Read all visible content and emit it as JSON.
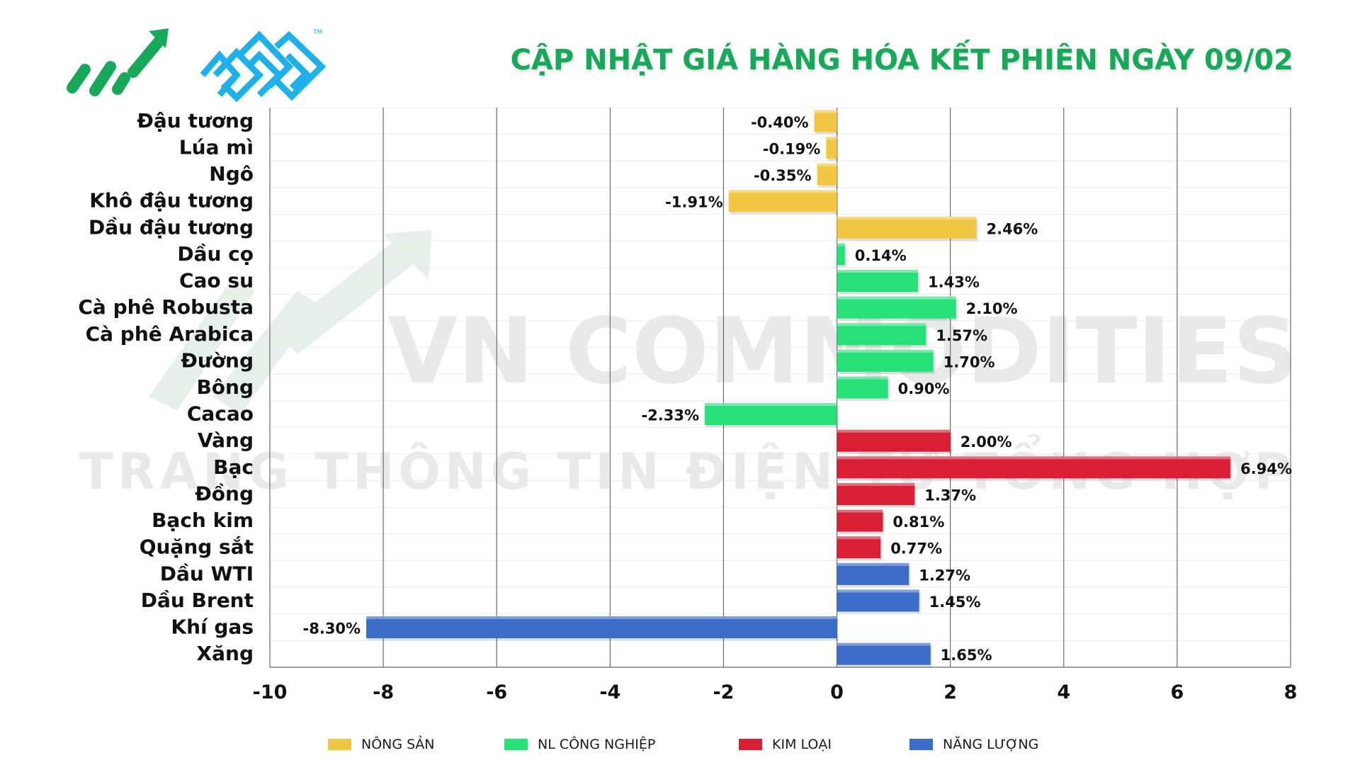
{
  "header": {
    "title": "CẬP NHẬT GIÁ HÀNG HÓA KẾT PHIÊN NGÀY 09/02"
  },
  "watermark": {
    "line1": "VN COMMODITIES",
    "line2": "TRANG THÔNG TIN ĐIỆN TỬ TỔNG HỢP"
  },
  "colors": {
    "nong_san": "#f2c744",
    "nl_cong_nghiep": "#27e07a",
    "kim_loai": "#d81f35",
    "nang_luong": "#3a6cc8",
    "title": "#17a85a",
    "logo_green": "#17a85a",
    "logo_blue": "#1fb0ea"
  },
  "legend": [
    {
      "label": "NÔNG SẢN",
      "group": "nong_san"
    },
    {
      "label": "NL CÔNG NGHIỆP",
      "group": "nl_cong_nghiep"
    },
    {
      "label": "KIM LOẠI",
      "group": "kim_loai"
    },
    {
      "label": "NĂNG LƯỢNG",
      "group": "nang_luong"
    }
  ],
  "chart_data": {
    "type": "bar",
    "orientation": "horizontal",
    "title": "CẬP NHẬT GIÁ HÀNG HÓA KẾT PHIÊN NGÀY 09/02",
    "xlim": [
      -10,
      8
    ],
    "xticks": [
      -10,
      -8,
      -6,
      -4,
      -2,
      0,
      2,
      4,
      6,
      8
    ],
    "grid": "vertical",
    "legend_position": "bottom",
    "categories": [
      "Đậu tương",
      "Lúa mì",
      "Ngô",
      "Khô đậu tương",
      "Dầu đậu tương",
      "Dầu cọ",
      "Cao su",
      "Cà phê Robusta",
      "Cà phê Arabica",
      "Đường",
      "Bông",
      "Cacao",
      "Vàng",
      "Bạc",
      "Đồng",
      "Bạch kim",
      "Quặng sắt",
      "Dầu WTI",
      "Dầu Brent",
      "Khí gas",
      "Xăng"
    ],
    "values": [
      -0.4,
      -0.19,
      -0.35,
      -1.91,
      2.46,
      0.14,
      1.43,
      2.1,
      1.57,
      1.7,
      0.9,
      -2.33,
      2.0,
      6.94,
      1.37,
      0.81,
      0.77,
      1.27,
      1.45,
      -8.3,
      1.65
    ],
    "value_labels": [
      "-0.40%",
      "-0.19%",
      "-0.35%",
      "-1.91%",
      "2.46%",
      "0.14%",
      "1.43%",
      "2.10%",
      "1.57%",
      "1.70%",
      "0.90%",
      "-2.33%",
      "2.00%",
      "6.94%",
      "1.37%",
      "0.81%",
      "0.77%",
      "1.27%",
      "1.45%",
      "-8.30%",
      "1.65%"
    ],
    "groups": [
      "nong_san",
      "nong_san",
      "nong_san",
      "nong_san",
      "nong_san",
      "nl_cong_nghiep",
      "nl_cong_nghiep",
      "nl_cong_nghiep",
      "nl_cong_nghiep",
      "nl_cong_nghiep",
      "nl_cong_nghiep",
      "nl_cong_nghiep",
      "kim_loai",
      "kim_loai",
      "kim_loai",
      "kim_loai",
      "kim_loai",
      "nang_luong",
      "nang_luong",
      "nang_luong",
      "nang_luong"
    ]
  }
}
